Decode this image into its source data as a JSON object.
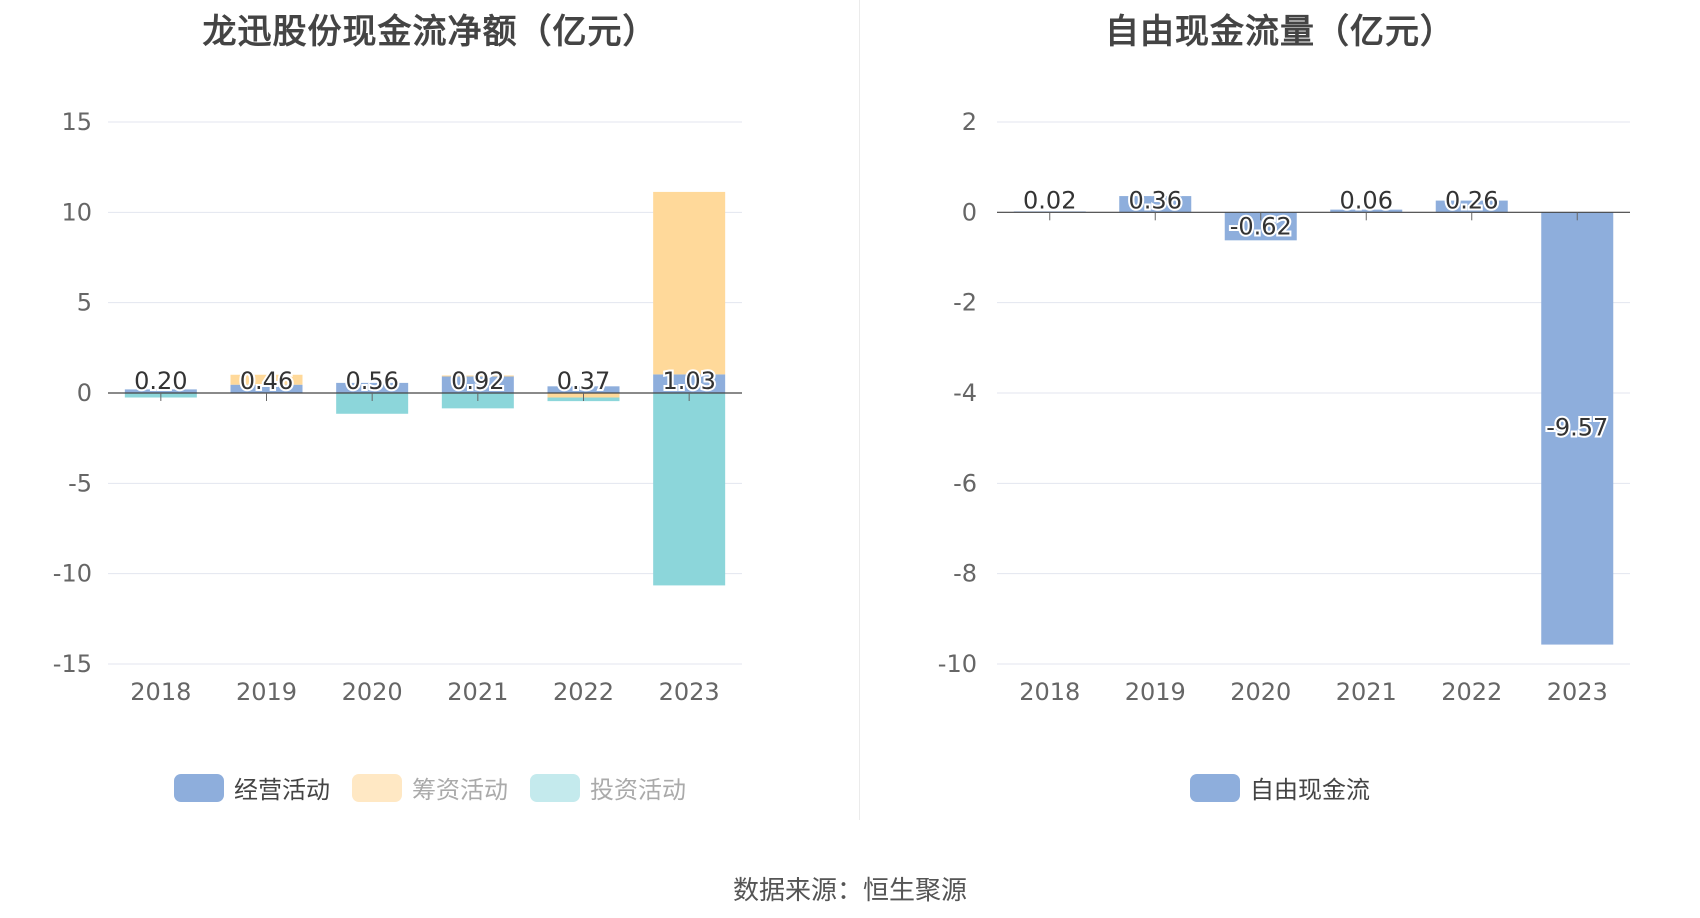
{
  "source": {
    "label": "数据来源：",
    "value": "恒生聚源"
  },
  "chart_data": [
    {
      "type": "bar",
      "stacked": true,
      "title": "龙迅股份现金流净额（亿元）",
      "categories": [
        "2018",
        "2019",
        "2020",
        "2021",
        "2022",
        "2023"
      ],
      "ylim": [
        -15,
        15
      ],
      "yticks": [
        15,
        10,
        5,
        0,
        -5,
        -10,
        -15
      ],
      "grid": true,
      "legend_position": "bottom",
      "series": [
        {
          "name": "经营活动",
          "color": "#8eaedc",
          "values": [
            0.2,
            0.46,
            0.56,
            0.92,
            0.37,
            1.03
          ]
        },
        {
          "name": "筹资活动",
          "color": "#ffd99a",
          "values": [
            0,
            0.55,
            0,
            0.05,
            -0.25,
            10.1
          ]
        },
        {
          "name": "投资活动",
          "color": "#8cd6da",
          "values": [
            -0.25,
            0,
            -1.15,
            -0.85,
            -0.2,
            -10.65
          ]
        }
      ],
      "data_labels": [
        "0.20",
        "0.46",
        "0.56",
        "0.92",
        "0.37",
        "1.03"
      ],
      "legend_colors": [
        "#8eaedc",
        "#ffe8c4",
        "#c4eaed"
      ],
      "legend_text_colors": [
        "#444444",
        "#aaaaaa",
        "#aaaaaa"
      ]
    },
    {
      "type": "bar",
      "title": "自由现金流量（亿元）",
      "categories": [
        "2018",
        "2019",
        "2020",
        "2021",
        "2022",
        "2023"
      ],
      "ylim": [
        -10,
        2
      ],
      "yticks": [
        2,
        0,
        -2,
        -4,
        -6,
        -8,
        -10
      ],
      "grid": true,
      "legend_position": "bottom",
      "series": [
        {
          "name": "自由现金流",
          "color": "#8eaedc",
          "values": [
            0.02,
            0.36,
            -0.62,
            0.06,
            0.26,
            -9.57
          ]
        }
      ],
      "data_labels": [
        "0.02",
        "0.36",
        "-0.62",
        "0.06",
        "0.26",
        "-9.57"
      ],
      "legend_colors": [
        "#8eaedc"
      ],
      "legend_text_colors": [
        "#444444"
      ]
    }
  ]
}
